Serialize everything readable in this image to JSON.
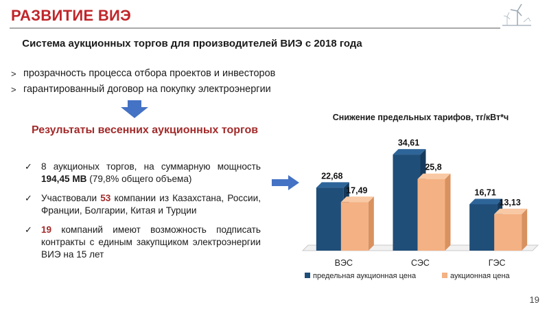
{
  "header": {
    "title": "РАЗВИТИЕ ВИЭ"
  },
  "subhead": "Система аукционных торгов для производителей ВИЭ с 2018 года",
  "bullets": [
    "прозрачность процесса отбора проектов и инвесторов",
    "гарантированный договор на покупку электроэнергии"
  ],
  "results_title": "Результаты весенних аукционных торгов",
  "checks": [
    {
      "pre": "8 аукционых торгов, на суммарную мощность ",
      "strong": "194,45 МВ",
      "post": " (79,8% общего объема)"
    },
    {
      "pre": "Участвовали ",
      "strong": "53",
      "post": " компании из Казахстана, России, Франции, Болгарии, Китая и Турции"
    },
    {
      "pre": "",
      "strong": "19",
      "post": " компаний имеют возможность подписать контракты с единым закупщиком электроэнергии ВИЭ на 15 лет"
    }
  ],
  "page_number": "19",
  "colors": {
    "title": "#c0252a",
    "series_max": "#1f4e79",
    "series_auction": "#f4b183"
  },
  "chart_data": {
    "type": "bar",
    "title": "Снижение предельных тарифов, тг/кВт*ч",
    "categories": [
      "ВЭС",
      "СЭС",
      "ГЭС"
    ],
    "series": [
      {
        "name": "предельная аукционная цена",
        "values": [
          22.68,
          34.61,
          16.71
        ],
        "labels": [
          "22,68",
          "34,61",
          "16,71"
        ]
      },
      {
        "name": "аукционная цена",
        "values": [
          17.49,
          25.8,
          13.13
        ],
        "labels": [
          "17,49",
          "25,8",
          "13,13"
        ]
      }
    ],
    "ylim": [
      0,
      40
    ],
    "grid": false,
    "legend": "bottom"
  }
}
